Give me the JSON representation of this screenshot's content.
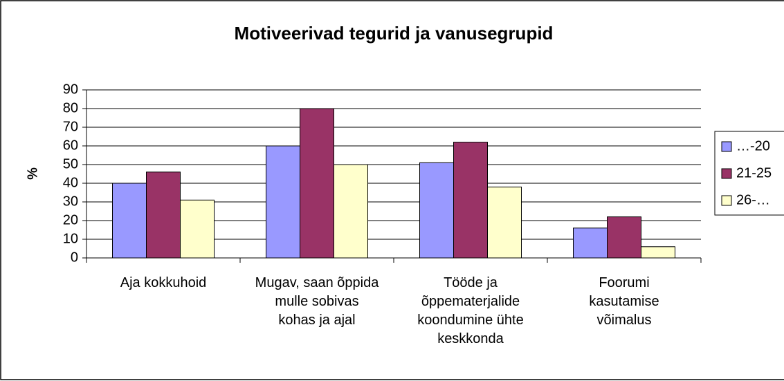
{
  "chart_data": {
    "type": "bar",
    "title": "Motiveerivad tegurid ja vanusegrupid",
    "ylabel": "%",
    "categories": [
      "Aja kokkuhoid",
      "Mugav, saan õppida mulle sobivas kohas ja ajal",
      "Tööde ja õppematerjalide koondumine ühte keskkonda",
      "Foorumi kasutamise võimalus"
    ],
    "series": [
      {
        "name": "…-20",
        "color": "#9999ff",
        "values": [
          40,
          60,
          51,
          16
        ]
      },
      {
        "name": "21-25",
        "color": "#993366",
        "values": [
          46,
          80,
          62,
          22
        ]
      },
      {
        "name": "26-…",
        "color": "#ffffcc",
        "values": [
          31,
          50,
          38,
          6
        ]
      }
    ],
    "ylim": [
      0,
      90
    ],
    "yticks": [
      0,
      10,
      20,
      30,
      40,
      50,
      60,
      70,
      80,
      90
    ],
    "grid": true,
    "legend": "right"
  }
}
